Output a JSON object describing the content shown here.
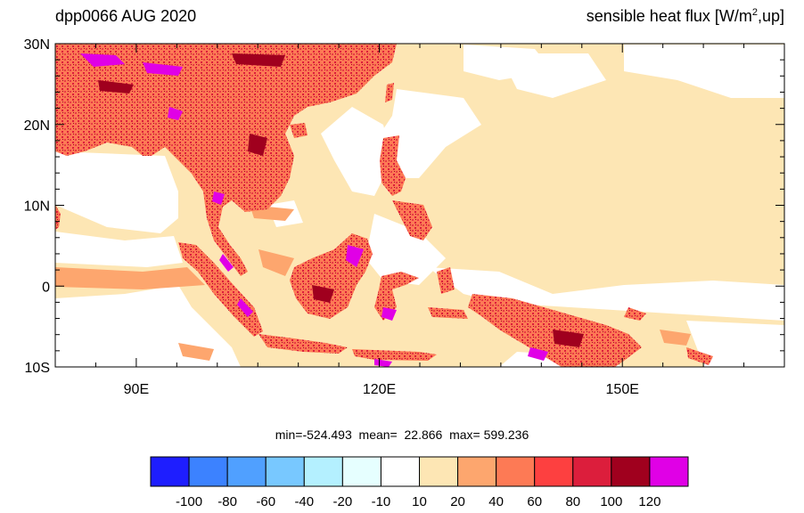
{
  "title": {
    "left": "dpp0066 AUG 2020",
    "right_main": "sensible heat flux [W/m",
    "right_sup": "2",
    "right_tail": ",up]"
  },
  "axes": {
    "lat_labels": [
      "30N",
      "20N",
      "10N",
      "0",
      "10S"
    ],
    "lat_values": [
      30,
      20,
      10,
      0,
      -10
    ],
    "lon_labels": [
      "90E",
      "120E",
      "150E"
    ],
    "lon_values": [
      90,
      120,
      150
    ],
    "lon_range": [
      80,
      170
    ],
    "lat_range": [
      -10,
      30
    ]
  },
  "stats": {
    "text": "min=-524.493  mean=  22.866  max= 599.236"
  },
  "colorbar": {
    "colors": [
      "#1e1eff",
      "#3c82ff",
      "#50a0ff",
      "#78c8ff",
      "#b4f0ff",
      "#e6ffff",
      "#ffffff",
      "#fde6b4",
      "#fda66e",
      "#fd7a55",
      "#fd4040",
      "#dc1e3c",
      "#a0001e",
      "#e000e6"
    ],
    "labels": [
      "-100",
      "-80",
      "-60",
      "-40",
      "-20",
      "-10",
      "10",
      "20",
      "40",
      "60",
      "80",
      "100",
      "120"
    ]
  },
  "palette": {
    "ocean_light": "#fde6b4",
    "ocean_mid": "#fda66e",
    "land": "#fd7a55",
    "land_hot": "#e83c46",
    "land_hottest": "#e000e6",
    "cool": "#ffffff"
  }
}
